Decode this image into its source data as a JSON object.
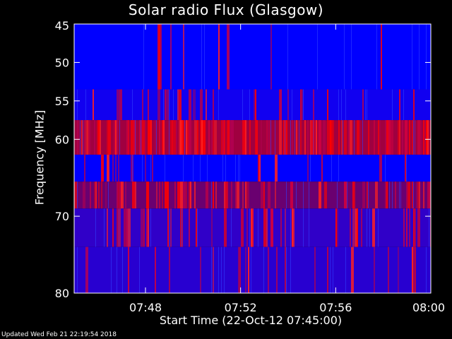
{
  "chart_data": {
    "type": "heatmap",
    "title": "Solar radio Flux (Glasgow)",
    "xlabel": "Start Time (22-Oct-12 07:45:00)",
    "ylabel": "Frequency [MHz]",
    "x_ticks": [
      "07:48",
      "07:52",
      "07:56",
      "08:00"
    ],
    "y_ticks": [
      "45",
      "50",
      "55",
      "60",
      "70",
      "80"
    ],
    "x_range": [
      "07:45:00",
      "08:00:00"
    ],
    "y_range_mhz": [
      45,
      80
    ],
    "colormap": [
      "#0000ff",
      "#7f0080",
      "#ff0000"
    ],
    "bands": [
      {
        "from_mhz": 45,
        "to_mhz": 53.5,
        "base_color": "#0000ff",
        "burst_density": 0.03
      },
      {
        "from_mhz": 53.5,
        "to_mhz": 57.5,
        "base_color": "#1100f0",
        "burst_density": 0.1
      },
      {
        "from_mhz": 57.5,
        "to_mhz": 62,
        "base_color": "#a00040",
        "burst_density": 0.45
      },
      {
        "from_mhz": 62,
        "to_mhz": 65.5,
        "base_color": "#0000ff",
        "burst_density": 0.06
      },
      {
        "from_mhz": 65.5,
        "to_mhz": 69,
        "base_color": "#6a0070",
        "burst_density": 0.2
      },
      {
        "from_mhz": 69,
        "to_mhz": 74,
        "base_color": "#3000c8",
        "burst_density": 0.12
      },
      {
        "from_mhz": 74,
        "to_mhz": 80,
        "base_color": "#2800d0",
        "burst_density": 0.1
      }
    ]
  },
  "footer_text": "Updated Wed Feb 21 22:19:54 2018"
}
